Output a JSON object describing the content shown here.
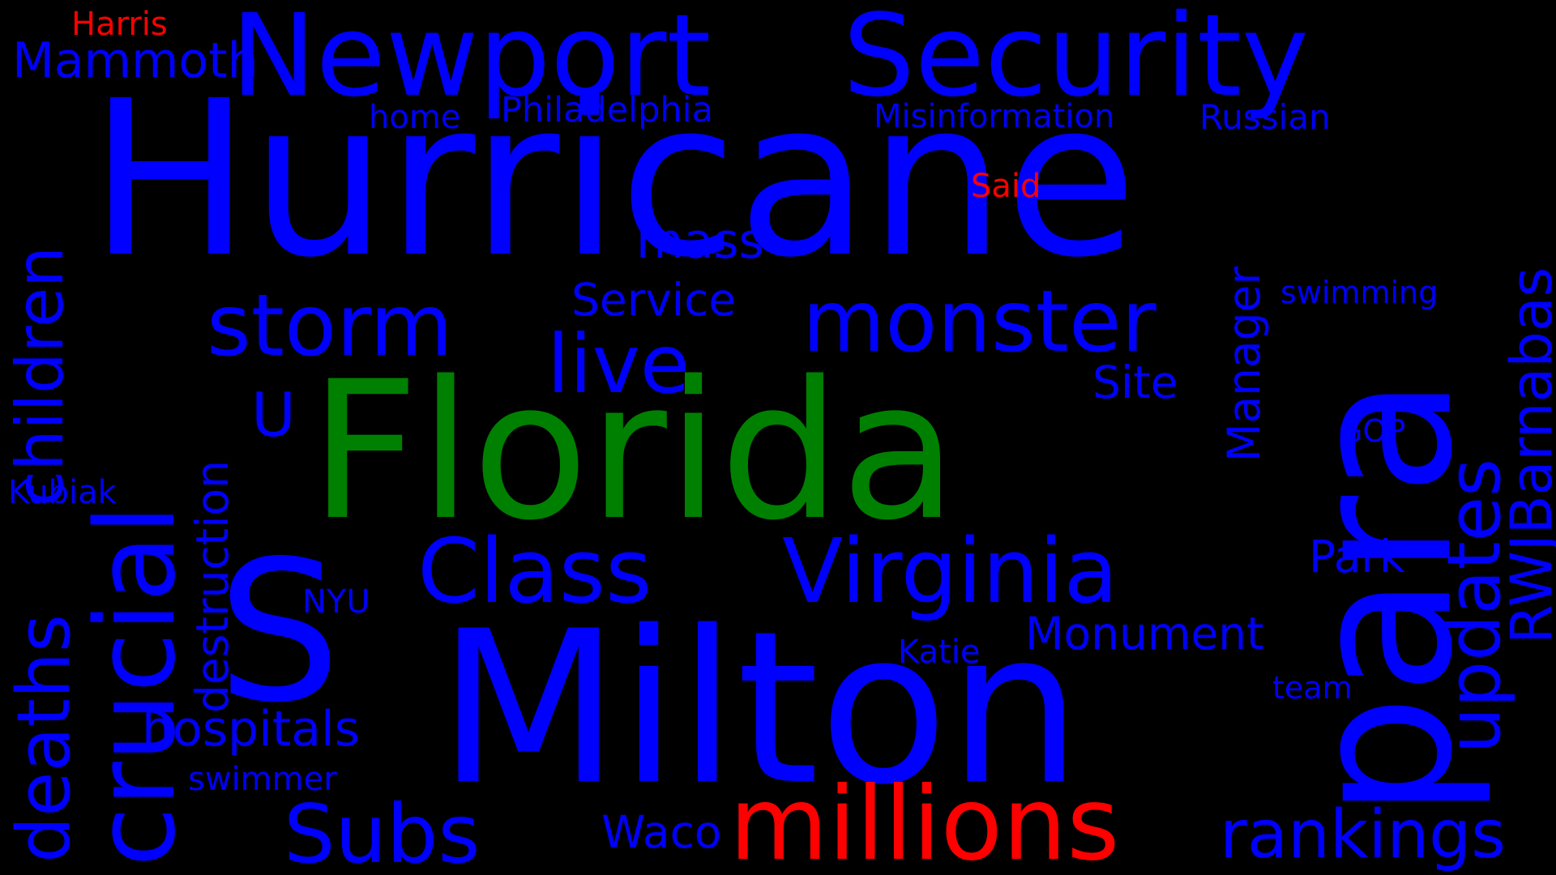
{
  "colors": {
    "background": "#000000",
    "blue": "#0000ff",
    "green": "#008000",
    "red": "#ff0000"
  },
  "words": {
    "hurricane": "Hurricane",
    "milton": "Milton",
    "florida": "Florida",
    "s": "S",
    "para": "para",
    "newport": "Newport",
    "security": "Security",
    "crucial": "crucial",
    "millions": "millions",
    "class": "Class",
    "virginia": "Virginia",
    "storm": "storm",
    "monster": "monster",
    "live": "live",
    "subs": "Subs",
    "deaths": "deaths",
    "children": "children",
    "updates": "updates",
    "rwjbarnabas": "RWJBarnabas",
    "rankings": "rankings",
    "mammoth": "Mammoth",
    "harris": "Harris",
    "home": "home",
    "philadelphia": "Philadelphia",
    "misinformation": "Misinformation",
    "russian": "Russian",
    "said": "Said",
    "mass": "mass",
    "service": "Service",
    "swimming": "swimming",
    "site": "Site",
    "manager": "Manager",
    "u": "U",
    "destruction": "destruction",
    "gop": "GOP",
    "kubiak": "Kubiak",
    "park": "Park",
    "nyu": "NYU",
    "monument": "Monument",
    "katie": "Katie",
    "hospitals": "hospitals",
    "team": "team",
    "swimmer": "swimmer",
    "waco": "Waco"
  }
}
